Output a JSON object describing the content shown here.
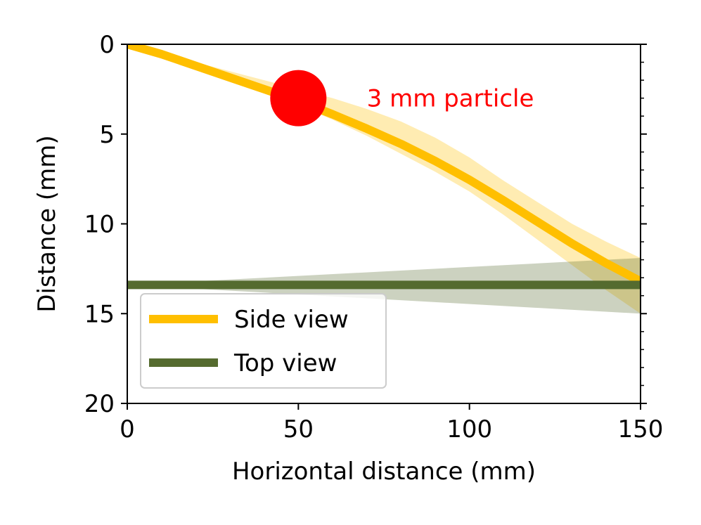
{
  "chart_data": {
    "type": "line",
    "title": "",
    "xlabel": "Horizontal distance (mm)",
    "ylabel": "Distance (mm)",
    "xlim": [
      0,
      150
    ],
    "ylim": [
      20,
      0
    ],
    "y_inverted": true,
    "xticks": [
      0,
      50,
      100,
      150
    ],
    "xtick_labels": [
      "0",
      "50",
      "100",
      "150"
    ],
    "yticks": [
      0,
      5,
      10,
      15,
      20
    ],
    "ytick_labels": [
      "0",
      "5",
      "10",
      "15",
      "20"
    ],
    "y_minor_ticks_right": true,
    "grid": false,
    "legend_position": "lower-left",
    "series": [
      {
        "name": "Side view",
        "color": "#FFBF00",
        "x": [
          0,
          10,
          20,
          30,
          40,
          50,
          60,
          70,
          80,
          90,
          100,
          110,
          120,
          130,
          140,
          150
        ],
        "y": [
          0.0,
          0.55,
          1.2,
          1.85,
          2.5,
          3.15,
          3.9,
          4.7,
          5.55,
          6.5,
          7.55,
          8.7,
          9.9,
          11.1,
          12.2,
          13.2
        ],
        "band_lower": [
          0.0,
          0.45,
          1.0,
          1.5,
          2.0,
          2.5,
          3.0,
          3.6,
          4.3,
          5.2,
          6.3,
          7.6,
          8.8,
          10.0,
          11.0,
          11.9
        ],
        "band_upper": [
          0.0,
          0.6,
          1.3,
          2.0,
          2.7,
          3.4,
          4.2,
          5.1,
          6.1,
          7.1,
          8.2,
          9.5,
          10.9,
          12.3,
          13.7,
          15.0
        ]
      },
      {
        "name": "Top view",
        "color": "#556B2F",
        "x": [
          0,
          150
        ],
        "y": [
          13.4,
          13.4
        ],
        "band_lower": [
          13.4,
          11.9
        ],
        "band_upper": [
          13.4,
          15.0
        ]
      }
    ],
    "annotations": [
      {
        "text": "3 mm particle",
        "x": 70,
        "y": 3.0,
        "color": "#FF0000"
      }
    ],
    "markers": [
      {
        "shape": "circle",
        "x": 50,
        "y": 3.0,
        "color": "#FF0000"
      }
    ]
  }
}
